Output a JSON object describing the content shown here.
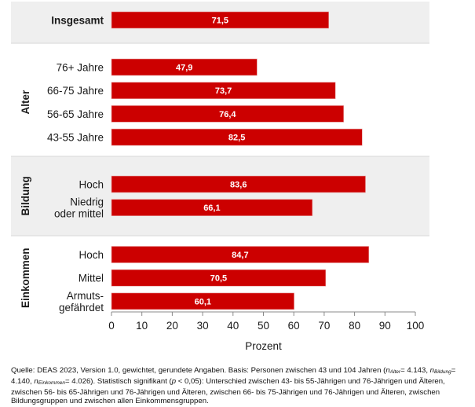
{
  "chart_data": {
    "type": "bar",
    "orientation": "horizontal",
    "title": "",
    "xlabel": "Prozent",
    "ylabel": "",
    "xlim": [
      0,
      100
    ],
    "xticks": [
      "0",
      "10",
      "20",
      "30",
      "40",
      "50",
      "60",
      "70",
      "80",
      "90",
      "100"
    ],
    "grid": false,
    "bar_color": "#cc0000",
    "panel_color": "#efefef",
    "groups": [
      {
        "name": "",
        "shaded": true,
        "categories": [
          {
            "label": [
              "Insgesamt"
            ],
            "bold": true,
            "value": 71.5,
            "value_label": "71,5"
          }
        ]
      },
      {
        "name": "Alter",
        "shaded": false,
        "categories": [
          {
            "label": [
              "76+ Jahre"
            ],
            "bold": false,
            "value": 47.9,
            "value_label": "47,9"
          },
          {
            "label": [
              "66-75 Jahre"
            ],
            "bold": false,
            "value": 73.7,
            "value_label": "73,7"
          },
          {
            "label": [
              "56-65 Jahre"
            ],
            "bold": false,
            "value": 76.4,
            "value_label": "76,4"
          },
          {
            "label": [
              "43-55 Jahre"
            ],
            "bold": false,
            "value": 82.5,
            "value_label": "82,5"
          }
        ]
      },
      {
        "name": "Bildung",
        "shaded": true,
        "categories": [
          {
            "label": [
              "Hoch"
            ],
            "bold": false,
            "value": 83.6,
            "value_label": "83,6"
          },
          {
            "label": [
              "Niedrig",
              "oder mittel"
            ],
            "bold": false,
            "value": 66.1,
            "value_label": "66,1"
          }
        ]
      },
      {
        "name": "Einkommen",
        "shaded": false,
        "categories": [
          {
            "label": [
              "Hoch"
            ],
            "bold": false,
            "value": 84.7,
            "value_label": "84,7"
          },
          {
            "label": [
              "Mittel"
            ],
            "bold": false,
            "value": 70.5,
            "value_label": "70,5"
          },
          {
            "label": [
              "Armuts-",
              "gefährdet"
            ],
            "bold": false,
            "value": 60.1,
            "value_label": "60,1"
          }
        ]
      }
    ]
  },
  "footnote": {
    "part1": "Quelle: DEAS 2023, Version 1.0, gewichtet, gerundete Angaben. Basis: Personen zwischen 43 und 104 Jahren (",
    "n_symbol": "n",
    "n_alter_sub": "Alter",
    "n_alter_val": "= 4.143, ",
    "n_bildung_sub": "Bildung",
    "n_bildung_val": "= 4.140, ",
    "n_einkommen_sub": "Einkommen",
    "n_einkommen_val": "= 4.026). Statistisch signifikant (",
    "p_symbol": "p",
    "part2": " < 0,05): Unterschied zwischen 43- bis 55-Jährigen und 76-Jährigen und Älteren, zwischen 56- bis 65-Jährigen und 76-Jährigen und Älteren, zwischen 66- bis 75-Jährigen und 76-Jährigen und Älteren, zwischen Bildungsgruppen und zwischen allen Einkommensgruppen."
  }
}
